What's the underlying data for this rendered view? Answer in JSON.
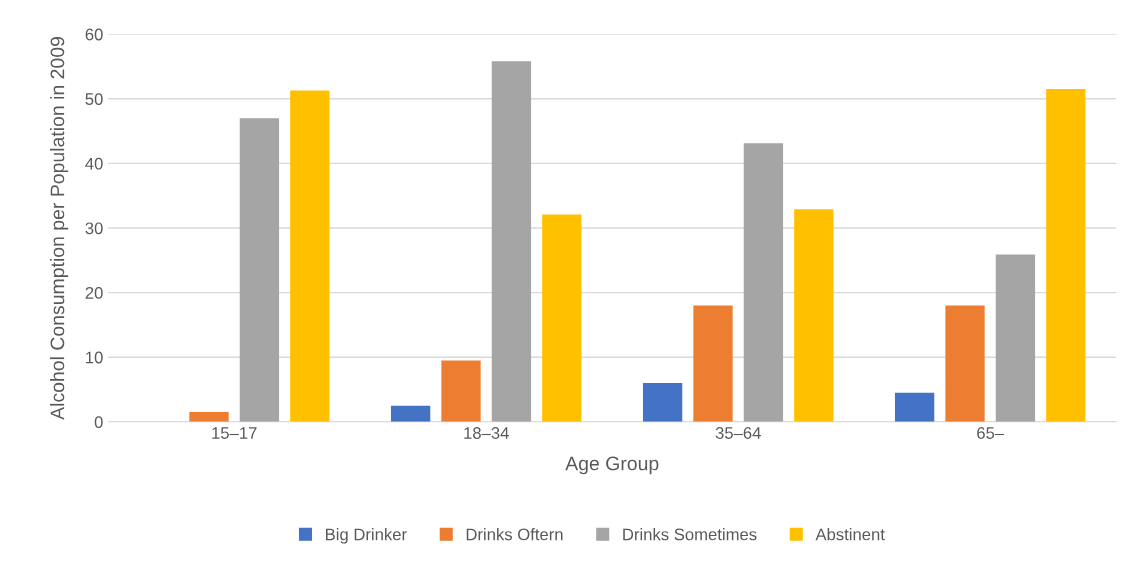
{
  "chart_data": {
    "type": "bar",
    "xlabel": "Age Group",
    "ylabel": "Alcohol Consumption per Population in 2009",
    "categories": [
      "15–17",
      "18–34",
      "35–64",
      "65–"
    ],
    "series": [
      {
        "name": "Big Drinker",
        "color": "#4472c4",
        "values": [
          0,
          2.5,
          6.0,
          4.5
        ]
      },
      {
        "name": "Drinks Oftern",
        "color": "#ed7d31",
        "values": [
          1.5,
          9.5,
          18.0,
          18.0
        ]
      },
      {
        "name": "Drinks Sometimes",
        "color": "#a5a5a5",
        "values": [
          47.0,
          55.8,
          43.1,
          25.9
        ]
      },
      {
        "name": "Abstinent",
        "color": "#ffc000",
        "values": [
          51.3,
          32.1,
          32.9,
          51.5
        ]
      }
    ],
    "ylim": [
      0,
      60
    ],
    "yticks": [
      0,
      10,
      20,
      30,
      40,
      50,
      60
    ],
    "grid": "y",
    "legend": "bottom"
  }
}
